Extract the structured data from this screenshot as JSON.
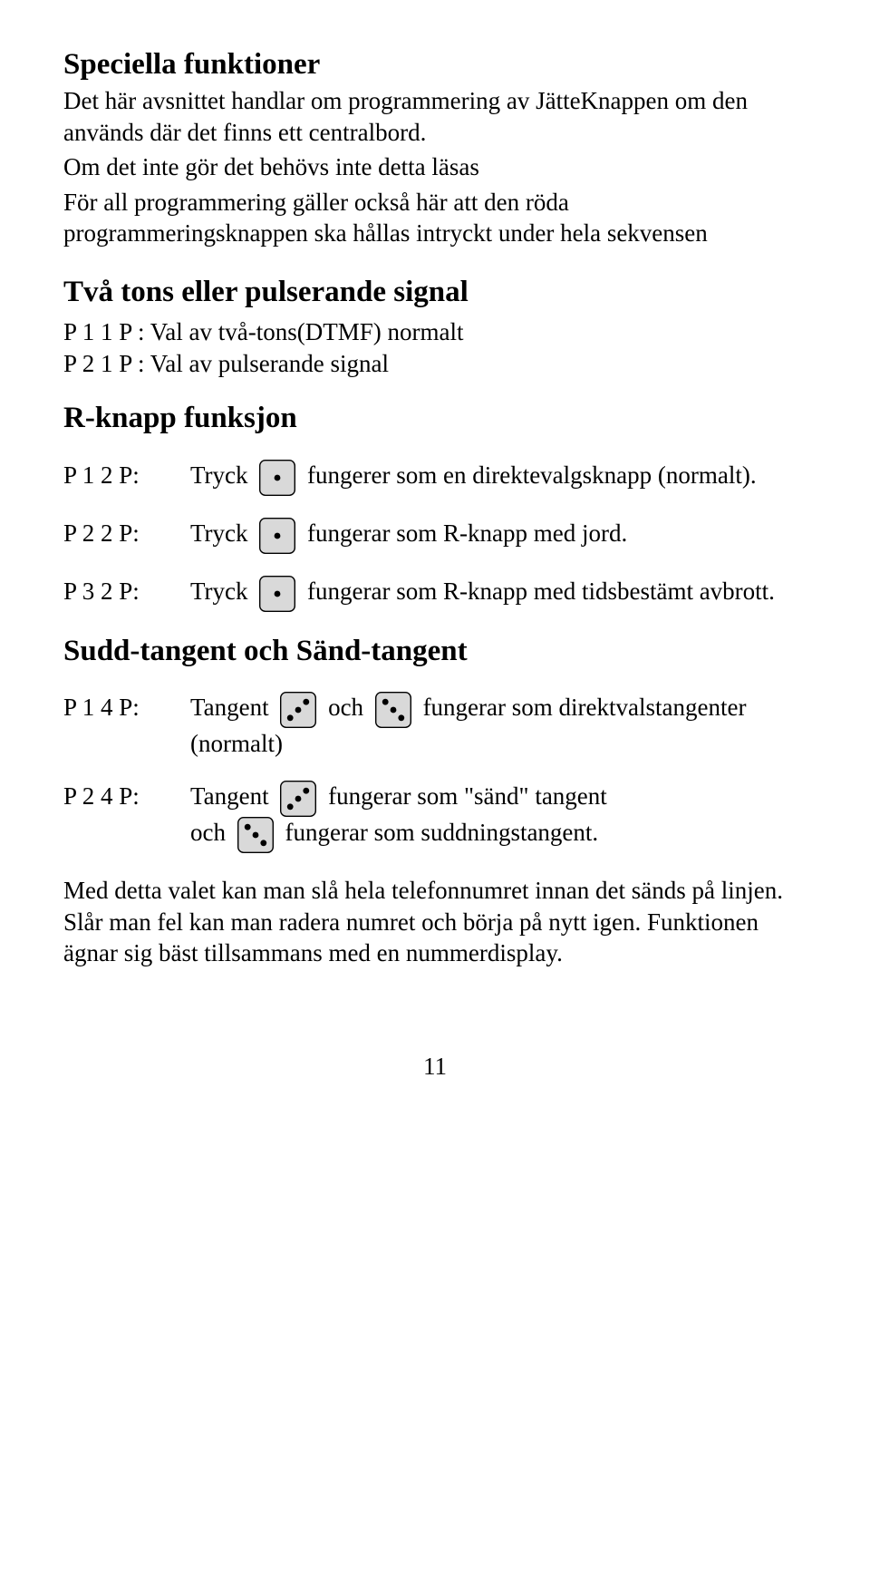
{
  "title": "Speciella funktioner",
  "intro1": "Det här avsnittet handlar om programmering av JätteKnappen om den används där det finns ett centralbord.",
  "intro2": "Om det inte gör det behövs inte detta läsas",
  "intro3": "För all programmering gäller också här att den röda programmeringsknappen ska hållas intryckt under hela sekvensen",
  "section1_title": "Två tons eller pulserande signal",
  "def1": "P 1 1 P : Val av två-tons(DTMF) normalt",
  "def2": "P 2 1 P : Val av pulserande signal",
  "section2_title": "R-knapp funksjon",
  "r1_label": "P 1 2 P:",
  "r1_a": "Tryck",
  "r1_b": "fungerer som en direktevalgsknapp (normalt).",
  "r2_label": "P 2 2 P:",
  "r2_a": "Tryck",
  "r2_b": "fungerar som R-knapp med jord.",
  "r3_label": "P 3 2 P:",
  "r3_a": "Tryck",
  "r3_b": "fungerar som R-knapp med tidsbestämt avbrott.",
  "section3_title": "Sudd-tangent och Sänd-tangent",
  "s1_label": "P 1 4 P:",
  "s1_a": "Tangent",
  "s1_mid": "och",
  "s1_b": "fungerar som direktvalstangenter (normalt)",
  "s2_label": "P 2 4 P:",
  "s2_a": "Tangent",
  "s2_b": "fungerar som \"sänd\" tangent",
  "s2_line2a": "och",
  "s2_line2b": "fungerar som suddningstangent.",
  "closing": "Med detta valet kan man slå hela telefonnumret innan det sänds på linjen. Slår man fel kan man radera numret och börja på nytt igen. Funktionen ägnar sig bäst tillsammans med en nummerdisplay.",
  "page_number": "11",
  "key_style": {
    "w": 40,
    "h": 40,
    "rx": 6,
    "fill": "#d9d9d9",
    "stroke": "#000000",
    "stroke_w": 1.4,
    "dot_r": 3.4,
    "dot_fill": "#000000"
  }
}
